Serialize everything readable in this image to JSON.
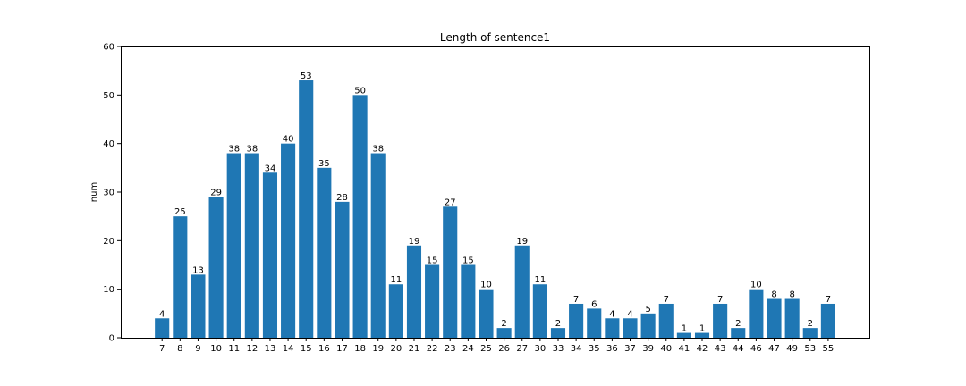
{
  "chart_data": {
    "type": "bar",
    "title": "Length of sentence1",
    "xlabel": "",
    "ylabel": "num",
    "ylim": [
      0,
      60
    ],
    "yticks": [
      0,
      10,
      20,
      30,
      40,
      50,
      60
    ],
    "grid": false,
    "legend": "none",
    "bar_color": "#1f77b4",
    "categories": [
      "7",
      "8",
      "9",
      "10",
      "11",
      "12",
      "13",
      "14",
      "15",
      "16",
      "17",
      "18",
      "19",
      "20",
      "21",
      "22",
      "23",
      "24",
      "25",
      "26",
      "27",
      "30",
      "33",
      "34",
      "35",
      "36",
      "37",
      "39",
      "40",
      "41",
      "42",
      "43",
      "44",
      "46",
      "47",
      "49",
      "53",
      "55"
    ],
    "values": [
      4,
      25,
      13,
      29,
      38,
      38,
      34,
      40,
      53,
      35,
      28,
      50,
      38,
      11,
      19,
      15,
      27,
      15,
      10,
      2,
      19,
      11,
      2,
      7,
      6,
      4,
      4,
      5,
      7,
      1,
      1,
      7,
      2,
      10,
      8,
      8,
      2,
      7
    ]
  }
}
